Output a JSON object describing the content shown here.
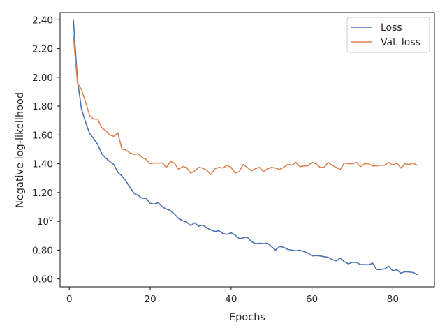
{
  "chart_data": {
    "type": "line",
    "title": "",
    "xlabel": "Epochs",
    "ylabel": "Negative log-likelihood",
    "xlim": [
      -2.3,
      90.3
    ],
    "ylim": [
      0.545,
      2.45
    ],
    "yscale": "linear",
    "grid": false,
    "legend_position": "top-right",
    "x_ticks": [
      {
        "value": 0,
        "label": "0"
      },
      {
        "value": 20,
        "label": "20"
      },
      {
        "value": 40,
        "label": "40"
      },
      {
        "value": 60,
        "label": "60"
      },
      {
        "value": 80,
        "label": "80"
      }
    ],
    "y_ticks": [
      {
        "value": 0.6,
        "label": "0.60"
      },
      {
        "value": 0.8,
        "label": "0.80"
      },
      {
        "value": 1.0,
        "label": "10",
        "sup": "0"
      },
      {
        "value": 1.2,
        "label": "1.20"
      },
      {
        "value": 1.4,
        "label": "1.40"
      },
      {
        "value": 1.6,
        "label": "1.60"
      },
      {
        "value": 1.8,
        "label": "1.80"
      },
      {
        "value": 2.0,
        "label": "2.00"
      },
      {
        "value": 2.2,
        "label": "2.20"
      },
      {
        "value": 2.4,
        "label": "2.40"
      }
    ],
    "x": [
      1,
      2,
      3,
      4,
      5,
      6,
      7,
      8,
      9,
      10,
      11,
      12,
      13,
      14,
      15,
      16,
      17,
      18,
      19,
      20,
      21,
      22,
      23,
      24,
      25,
      26,
      27,
      28,
      29,
      30,
      31,
      32,
      33,
      34,
      35,
      36,
      37,
      38,
      39,
      40,
      41,
      42,
      43,
      44,
      45,
      46,
      47,
      48,
      49,
      50,
      51,
      52,
      53,
      54,
      55,
      56,
      57,
      58,
      59,
      60,
      61,
      62,
      63,
      64,
      65,
      66,
      67,
      68,
      69,
      70,
      71,
      72,
      73,
      74,
      75,
      76,
      77,
      78,
      79,
      80,
      81,
      82,
      83,
      84,
      85,
      86
    ],
    "series": [
      {
        "name": "Loss",
        "color": "#4c72b0",
        "values": [
          2.4,
          1.98,
          1.78,
          1.69,
          1.61,
          1.575,
          1.535,
          1.47,
          1.44,
          1.415,
          1.395,
          1.34,
          1.315,
          1.28,
          1.235,
          1.195,
          1.18,
          1.16,
          1.16,
          1.125,
          1.12,
          1.13,
          1.1,
          1.085,
          1.075,
          1.05,
          1.02,
          1.005,
          0.995,
          0.97,
          0.99,
          0.965,
          0.975,
          0.955,
          0.94,
          0.93,
          0.935,
          0.915,
          0.91,
          0.92,
          0.905,
          0.88,
          0.885,
          0.89,
          0.86,
          0.845,
          0.848,
          0.845,
          0.848,
          0.825,
          0.8,
          0.825,
          0.82,
          0.805,
          0.8,
          0.795,
          0.8,
          0.79,
          0.78,
          0.76,
          0.762,
          0.76,
          0.755,
          0.75,
          0.735,
          0.725,
          0.745,
          0.72,
          0.705,
          0.715,
          0.715,
          0.7,
          0.7,
          0.698,
          0.71,
          0.665,
          0.665,
          0.67,
          0.688,
          0.655,
          0.665,
          0.64,
          0.65,
          0.648,
          0.645,
          0.63
        ]
      },
      {
        "name": "Val. loss",
        "color": "#dd8452",
        "values": [
          2.29,
          1.96,
          1.915,
          1.83,
          1.735,
          1.71,
          1.71,
          1.65,
          1.63,
          1.6,
          1.59,
          1.615,
          1.5,
          1.495,
          1.475,
          1.465,
          1.47,
          1.445,
          1.43,
          1.4,
          1.405,
          1.405,
          1.405,
          1.375,
          1.415,
          1.405,
          1.36,
          1.38,
          1.375,
          1.335,
          1.35,
          1.375,
          1.37,
          1.355,
          1.325,
          1.365,
          1.375,
          1.37,
          1.39,
          1.375,
          1.335,
          1.345,
          1.395,
          1.375,
          1.35,
          1.365,
          1.375,
          1.345,
          1.365,
          1.375,
          1.37,
          1.36,
          1.375,
          1.395,
          1.39,
          1.41,
          1.38,
          1.385,
          1.385,
          1.41,
          1.4,
          1.375,
          1.375,
          1.41,
          1.39,
          1.375,
          1.36,
          1.405,
          1.4,
          1.4,
          1.41,
          1.38,
          1.4,
          1.4,
          1.385,
          1.385,
          1.39,
          1.39,
          1.41,
          1.39,
          1.405,
          1.37,
          1.4,
          1.395,
          1.405,
          1.39
        ]
      }
    ]
  }
}
